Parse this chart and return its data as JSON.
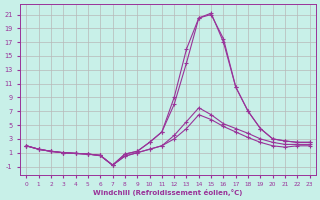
{
  "background_color": "#c8f0e8",
  "grid_color": "#b8b8b8",
  "line_color": "#993399",
  "xlabel": "Windchill (Refroidissement éolien,°C)",
  "x_ticks": [
    0,
    1,
    2,
    3,
    4,
    5,
    6,
    7,
    8,
    9,
    10,
    11,
    12,
    13,
    14,
    15,
    16,
    17,
    18,
    19,
    20,
    21,
    22,
    23
  ],
  "y_ticks": [
    -1,
    1,
    3,
    5,
    7,
    9,
    11,
    13,
    15,
    17,
    19,
    21
  ],
  "xlim": [
    -0.5,
    23.5
  ],
  "ylim": [
    -2.2,
    22.5
  ],
  "series": [
    {
      "x": [
        0,
        1,
        2,
        3,
        4,
        5,
        6,
        7,
        8,
        9,
        10,
        11,
        12,
        13,
        14,
        15,
        16,
        17,
        18,
        19,
        20,
        21,
        22,
        23
      ],
      "y": [
        2.0,
        1.5,
        1.2,
        1.0,
        0.9,
        0.8,
        0.6,
        -0.8,
        0.5,
        1.0,
        1.5,
        2.0,
        3.0,
        4.5,
        6.5,
        5.8,
        4.8,
        4.0,
        3.2,
        2.5,
        2.0,
        1.8,
        2.0,
        2.0
      ]
    },
    {
      "x": [
        0,
        1,
        2,
        3,
        4,
        5,
        6,
        7,
        8,
        9,
        10,
        11,
        12,
        13,
        14,
        15,
        16,
        17,
        18,
        19,
        20,
        21,
        22,
        23
      ],
      "y": [
        2.0,
        1.5,
        1.2,
        1.0,
        0.9,
        0.8,
        0.6,
        -0.8,
        0.5,
        1.0,
        1.5,
        2.0,
        3.5,
        5.5,
        7.5,
        6.5,
        5.2,
        4.5,
        3.8,
        3.0,
        2.5,
        2.2,
        2.2,
        2.2
      ]
    },
    {
      "x": [
        0,
        1,
        2,
        3,
        4,
        5,
        6,
        7,
        8,
        9,
        10,
        11,
        12,
        13,
        14,
        15,
        16,
        17,
        18,
        19,
        20,
        21,
        22,
        23
      ],
      "y": [
        2.0,
        1.5,
        1.2,
        1.0,
        0.9,
        0.8,
        0.6,
        -0.8,
        0.8,
        1.2,
        2.5,
        4.0,
        8.0,
        14.0,
        20.5,
        21.0,
        17.5,
        10.5,
        7.0,
        4.5,
        3.0,
        2.7,
        2.5,
        2.5
      ]
    },
    {
      "x": [
        0,
        1,
        2,
        3,
        4,
        5,
        6,
        7,
        8,
        9,
        10,
        11,
        12,
        13,
        14,
        15,
        16,
        17,
        18,
        19,
        20,
        21,
        22,
        23
      ],
      "y": [
        2.0,
        1.5,
        1.2,
        1.0,
        0.9,
        0.8,
        0.6,
        -0.8,
        0.8,
        1.2,
        2.5,
        4.0,
        9.0,
        16.0,
        20.5,
        21.2,
        17.0,
        10.5,
        7.0,
        4.5,
        3.0,
        2.7,
        2.5,
        2.5
      ]
    }
  ]
}
